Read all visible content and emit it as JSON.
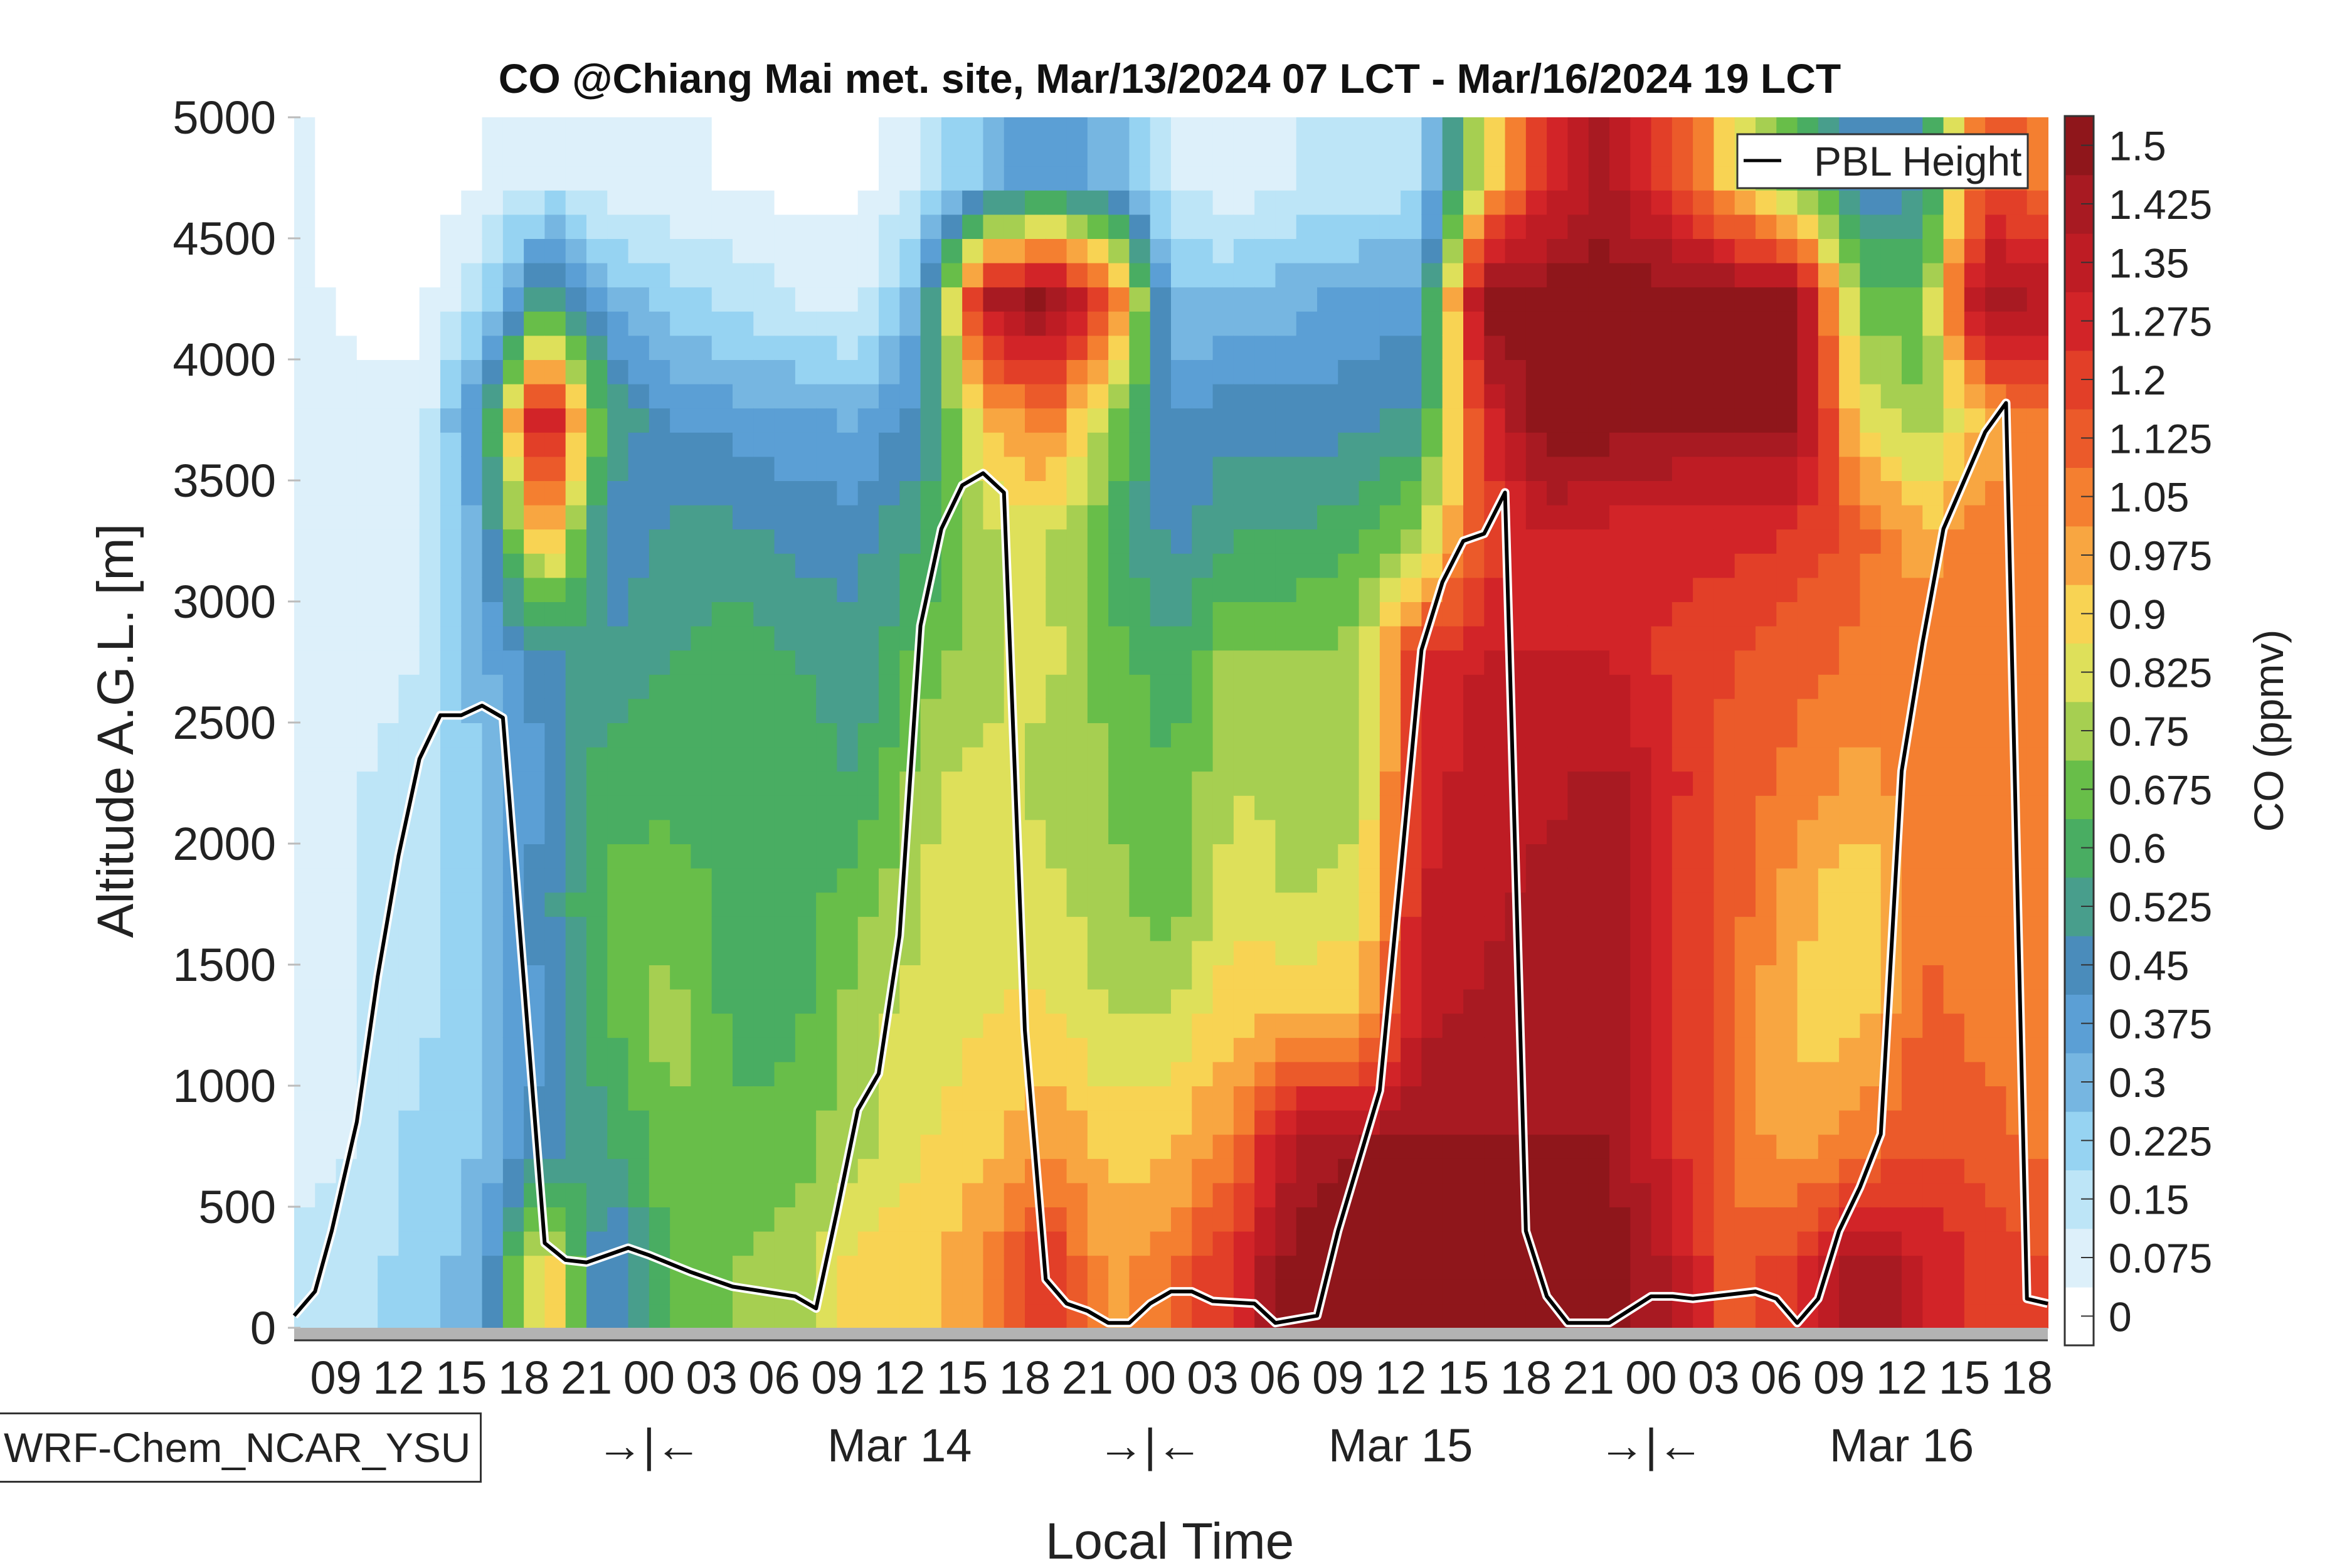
{
  "chart_data": {
    "type": "heatmap",
    "title": "CO @Chiang Mai met. site, Mar/13/2024 07 LCT - Mar/16/2024 19 LCT",
    "xlabel": "Local Time",
    "ylabel": "Altitude A.G.L. [m]",
    "colorbar_label": "CO (ppmv)",
    "model_label": "WRF-Chem_NCAR_YSU",
    "xlim_hours_since_start": [
      0,
      84
    ],
    "ylim": [
      0,
      5000
    ],
    "yticks": [
      "0",
      "500",
      "1000",
      "1500",
      "2000",
      "2500",
      "3000",
      "3500",
      "4000",
      "4500",
      "5000"
    ],
    "xtick_hours": [
      2,
      5,
      8,
      11,
      14,
      17,
      20,
      23,
      26,
      29,
      32,
      35,
      38,
      41,
      44,
      47,
      50,
      53,
      56,
      59,
      62,
      65,
      68,
      71,
      74,
      77,
      80,
      83
    ],
    "xtick_labels": [
      "09",
      "12",
      "15",
      "18",
      "21",
      "00",
      "03",
      "06",
      "09",
      "12",
      "15",
      "18",
      "21",
      "00",
      "03",
      "06",
      "09",
      "12",
      "15",
      "18",
      "21",
      "00",
      "03",
      "06",
      "09",
      "12",
      "15",
      "18"
    ],
    "day_separators": {
      "hours": [
        17,
        41,
        65
      ],
      "label": "→|←"
    },
    "day_labels": [
      {
        "hour": 29,
        "label": "Mar 14"
      },
      {
        "hour": 53,
        "label": "Mar 15"
      },
      {
        "hour": 77,
        "label": "Mar 16"
      }
    ],
    "levels": [
      "0",
      "0.075",
      "0.15",
      "0.225",
      "0.3",
      "0.375",
      "0.45",
      "0.525",
      "0.6",
      "0.675",
      "0.75",
      "0.825",
      "0.9",
      "0.975",
      "1.05",
      "1.125",
      "1.2",
      "1.275",
      "1.35",
      "1.425",
      "1.5"
    ],
    "level_step": 0.075,
    "colors": [
      "#ffffff",
      "#ddf0fa",
      "#bde5f7",
      "#96d3f2",
      "#76b6e1",
      "#5b9fd5",
      "#4a8cbb",
      "#489e8c",
      "#49ad62",
      "#68be49",
      "#a6cf51",
      "#dee05a",
      "#f8d353",
      "#f8a641",
      "#f47f30",
      "#eb5a2a",
      "#e23f28",
      "#d22428",
      "#be1c24",
      "#a81a22",
      "#8f161b"
    ],
    "grid_time_hours": [
      0,
      3,
      6,
      9,
      12,
      15,
      18,
      21,
      24,
      27,
      30,
      33,
      36,
      39,
      42,
      45,
      48,
      51,
      54,
      57,
      60,
      63,
      66,
      69,
      72,
      75,
      78,
      81,
      84
    ],
    "grid_altitude_centers_m": [
      250,
      750,
      1250,
      1750,
      2250,
      2750,
      3250,
      3750,
      4250,
      4750
    ],
    "values_ppmv": [
      [
        0.18,
        0.12,
        0.12,
        0.12,
        0.12,
        0.12,
        0.1,
        0.1,
        0.1,
        0.08
      ],
      [
        0.2,
        0.15,
        0.15,
        0.15,
        0.15,
        0.1,
        0.1,
        0.1,
        0.05,
        0.05
      ],
      [
        0.25,
        0.25,
        0.2,
        0.2,
        0.2,
        0.15,
        0.1,
        0.1,
        0.05,
        0.03
      ],
      [
        0.35,
        0.3,
        0.3,
        0.3,
        0.3,
        0.35,
        0.4,
        0.5,
        0.2,
        0.08
      ],
      [
        1.0,
        0.5,
        0.45,
        0.5,
        0.45,
        0.5,
        1.0,
        1.45,
        0.6,
        0.15
      ],
      [
        0.4,
        0.6,
        0.65,
        0.7,
        0.65,
        0.55,
        0.45,
        0.6,
        0.35,
        0.1
      ],
      [
        0.7,
        0.72,
        0.8,
        0.72,
        0.65,
        0.6,
        0.55,
        0.45,
        0.25,
        0.08
      ],
      [
        0.75,
        0.7,
        0.65,
        0.65,
        0.65,
        0.65,
        0.55,
        0.42,
        0.2,
        0.07
      ],
      [
        0.78,
        0.72,
        0.65,
        0.65,
        0.65,
        0.6,
        0.5,
        0.4,
        0.15,
        0.05
      ],
      [
        0.95,
        0.8,
        0.8,
        0.72,
        0.6,
        0.55,
        0.5,
        0.35,
        0.12,
        0.05
      ],
      [
        0.95,
        0.9,
        0.85,
        0.83,
        0.8,
        0.7,
        0.6,
        0.5,
        0.35,
        0.15
      ],
      [
        1.05,
        0.95,
        0.9,
        0.88,
        0.85,
        0.8,
        0.8,
        0.95,
        1.4,
        0.3
      ],
      [
        1.3,
        1.05,
        0.93,
        0.85,
        0.8,
        0.85,
        0.85,
        1.1,
        1.55,
        0.45
      ],
      [
        1.0,
        0.95,
        0.82,
        0.78,
        0.75,
        0.72,
        0.65,
        0.8,
        1.2,
        0.35
      ],
      [
        1.1,
        0.95,
        0.85,
        0.7,
        0.68,
        0.62,
        0.5,
        0.45,
        0.3,
        0.15
      ],
      [
        1.3,
        1.1,
        0.95,
        0.88,
        0.82,
        0.78,
        0.6,
        0.5,
        0.3,
        0.1
      ],
      [
        1.55,
        1.45,
        1.0,
        0.82,
        0.8,
        0.77,
        0.6,
        0.48,
        0.35,
        0.15
      ],
      [
        1.55,
        1.5,
        1.0,
        0.85,
        0.8,
        0.78,
        0.68,
        0.5,
        0.4,
        0.15
      ],
      [
        1.5,
        1.5,
        1.4,
        1.35,
        1.3,
        1.3,
        0.8,
        0.55,
        0.42,
        0.2
      ],
      [
        1.55,
        1.5,
        1.45,
        1.4,
        1.4,
        1.35,
        1.2,
        1.3,
        1.55,
        0.9
      ],
      [
        1.55,
        1.5,
        1.45,
        1.45,
        1.4,
        1.35,
        1.35,
        1.55,
        1.55,
        1.3
      ],
      [
        1.55,
        1.5,
        1.45,
        1.5,
        1.45,
        1.35,
        1.3,
        1.55,
        1.55,
        1.45
      ],
      [
        1.4,
        1.3,
        1.3,
        1.25,
        1.3,
        1.25,
        1.3,
        1.5,
        1.55,
        1.2
      ],
      [
        1.15,
        1.1,
        1.1,
        1.15,
        1.15,
        1.2,
        1.3,
        1.5,
        1.55,
        0.9
      ],
      [
        1.25,
        1.0,
        0.95,
        1.0,
        1.1,
        1.15,
        1.25,
        1.5,
        1.5,
        0.7
      ],
      [
        1.5,
        1.1,
        0.95,
        0.9,
        1.0,
        1.1,
        1.15,
        0.9,
        0.7,
        0.45
      ],
      [
        1.35,
        1.2,
        1.15,
        1.1,
        1.1,
        1.1,
        1.0,
        0.75,
        0.7,
        0.5
      ],
      [
        1.25,
        1.15,
        1.1,
        1.1,
        1.1,
        1.1,
        1.1,
        1.0,
        1.5,
        1.2
      ],
      [
        1.2,
        1.1,
        1.1,
        1.05,
        1.05,
        1.05,
        1.05,
        1.1,
        1.4,
        1.1
      ]
    ],
    "pbl": {
      "name": "PBL Height",
      "hours": [
        0,
        1,
        1.8,
        3,
        4,
        5,
        6,
        7,
        8,
        9,
        10,
        12,
        13,
        14,
        16,
        17,
        19,
        21,
        24,
        25,
        26,
        27,
        28,
        29,
        30,
        31,
        32,
        33,
        34,
        35,
        36,
        37,
        38,
        39,
        40,
        41,
        42,
        43,
        44,
        46,
        47,
        49,
        50,
        52,
        53,
        54,
        55,
        56,
        57,
        58,
        59,
        60,
        61,
        63,
        65,
        66,
        67,
        70,
        71,
        72,
        73,
        74,
        75,
        76,
        77,
        78,
        79,
        80,
        81,
        82,
        83,
        84
      ],
      "height_m": [
        50,
        150,
        400,
        850,
        1450,
        1950,
        2350,
        2530,
        2530,
        2570,
        2520,
        350,
        280,
        270,
        330,
        300,
        230,
        170,
        130,
        80,
        480,
        900,
        1050,
        1620,
        2900,
        3300,
        3480,
        3530,
        3450,
        1230,
        200,
        100,
        70,
        20,
        20,
        100,
        150,
        150,
        110,
        100,
        20,
        50,
        400,
        980,
        1880,
        2800,
        3080,
        3250,
        3280,
        3450,
        400,
        130,
        20,
        20,
        130,
        130,
        120,
        150,
        120,
        20,
        120,
        400,
        580,
        800,
        2300,
        2830,
        3300,
        3500,
        3700,
        3820,
        120,
        100
      ]
    },
    "legend_position": "top-right",
    "ground_color": "#b3b3b3"
  }
}
